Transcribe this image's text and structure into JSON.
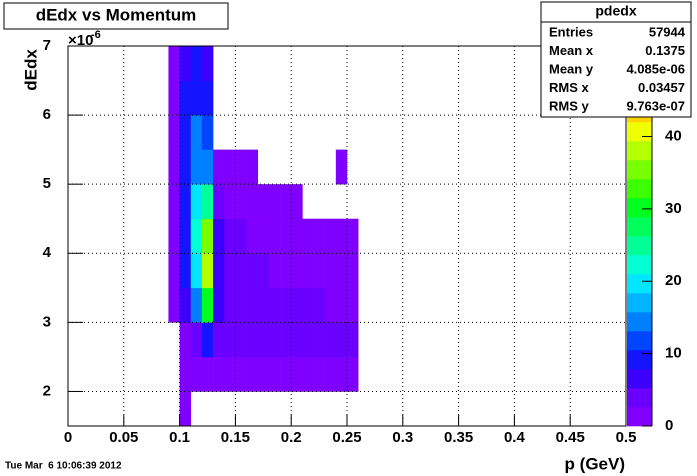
{
  "chart_data": {
    "type": "heatmap",
    "title": "dEdx vs Momentum",
    "x_label": "p (GeV)",
    "y_label": "dEdx",
    "y_multiplier": "×10",
    "y_multiplier_exp": "-6",
    "xlim": [
      0,
      0.5
    ],
    "xticks": [
      0,
      0.05,
      0.1,
      0.15,
      0.2,
      0.25,
      0.3,
      0.35,
      0.4,
      0.45,
      0.5
    ],
    "ylim": [
      1.5,
      7
    ],
    "yticks": [
      2,
      3,
      4,
      5,
      6,
      7
    ],
    "zlim": [
      0,
      52.5
    ],
    "zticks": [
      0,
      10,
      20,
      30,
      40
    ],
    "grid": true,
    "xbins": [
      0.09,
      0.1,
      0.11,
      0.12,
      0.13,
      0.14,
      0.15,
      0.16,
      0.17,
      0.18,
      0.19,
      0.2,
      0.21,
      0.22,
      0.23,
      0.24,
      0.25,
      0.26,
      0.27
    ],
    "ybins": [
      1.5,
      2,
      2.5,
      3,
      3.5,
      4,
      4.5,
      5,
      5.5,
      6,
      6.5,
      7
    ],
    "z": [
      [
        0,
        1,
        0,
        0,
        0,
        0,
        0,
        0,
        0,
        0,
        0,
        0,
        0,
        0,
        0,
        0,
        0,
        0
      ],
      [
        0,
        1,
        1,
        1,
        1,
        1,
        1,
        1,
        1,
        1,
        1,
        1,
        1,
        1,
        1,
        1,
        1,
        0
      ],
      [
        0,
        2,
        4,
        8,
        4,
        3,
        3,
        3,
        3,
        3,
        3,
        3,
        3,
        3,
        3,
        3,
        3,
        0
      ],
      [
        1,
        6,
        15,
        30,
        6,
        5,
        4,
        4,
        3,
        3,
        3,
        3,
        3,
        3,
        2,
        2,
        2,
        0
      ],
      [
        1,
        8,
        20,
        38,
        7,
        5,
        4,
        3,
        3,
        2,
        2,
        2,
        2,
        1,
        1,
        1,
        1,
        0
      ],
      [
        1,
        10,
        22,
        35,
        6,
        4,
        3,
        2,
        2,
        1,
        1,
        1,
        1,
        1,
        1,
        1,
        1,
        0
      ],
      [
        1,
        10,
        20,
        25,
        3,
        2,
        1,
        1,
        1,
        1,
        1,
        1,
        0,
        0,
        0,
        0,
        0,
        0
      ],
      [
        1,
        10,
        15,
        15,
        1,
        1,
        1,
        1,
        0,
        0,
        0,
        0,
        0,
        0,
        0,
        1,
        0,
        0
      ],
      [
        1,
        9,
        14,
        12,
        0,
        0,
        0,
        0,
        0,
        0,
        0,
        0,
        0,
        0,
        0,
        0,
        0,
        0
      ],
      [
        1,
        8,
        10,
        8,
        0,
        0,
        0,
        0,
        0,
        0,
        0,
        0,
        0,
        0,
        0,
        0,
        0,
        0
      ],
      [
        1,
        7,
        8,
        6,
        0,
        0,
        0,
        0,
        0,
        0,
        0,
        0,
        0,
        0,
        0,
        0,
        0,
        0
      ]
    ],
    "palette": [
      "#8000ff",
      "#6a00ff",
      "#3c00ff",
      "#1414ff",
      "#0046ff",
      "#0080ff",
      "#00b4ff",
      "#00e6ff",
      "#00ffd2",
      "#00ff96",
      "#00ff5a",
      "#00ff1e",
      "#3cff00",
      "#78ff00",
      "#b4ff00",
      "#f0ff00",
      "#ffd200",
      "#ff9600",
      "#ff5a00",
      "#ff1e00"
    ],
    "stats": {
      "title": "pdedx",
      "rows": [
        [
          "Entries",
          "57944"
        ],
        [
          "Mean x",
          "0.1375"
        ],
        [
          "Mean y",
          "4.085e-06"
        ],
        [
          "RMS x",
          "0.03457"
        ],
        [
          "RMS y",
          "9.763e-07"
        ]
      ]
    },
    "timestamp": "Tue Mar  6 10:06:39 2012"
  }
}
